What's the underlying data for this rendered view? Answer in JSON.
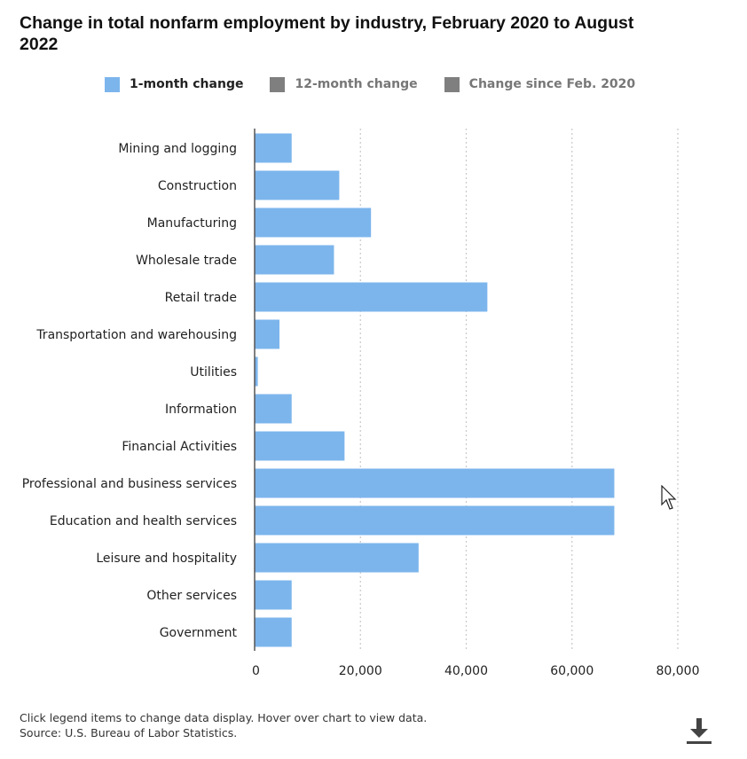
{
  "title": "Change in total nonfarm employment by industry, February 2020 to August 2022",
  "legend": [
    {
      "label": "1-month change",
      "color": "#7cb5ec",
      "active": true
    },
    {
      "label": "12-month change",
      "color": "#7f7f7f",
      "active": false
    },
    {
      "label": "Change since Feb. 2020",
      "color": "#7f7f7f",
      "active": false
    }
  ],
  "chart_data": {
    "type": "bar",
    "orientation": "horizontal",
    "title": "Change in total nonfarm employment by industry, February 2020 to August 2022",
    "categories": [
      "Mining and logging",
      "Construction",
      "Manufacturing",
      "Wholesale trade",
      "Retail trade",
      "Transportation and warehousing",
      "Utilities",
      "Information",
      "Financial Activities",
      "Professional and business services",
      "Education and health services",
      "Leisure and hospitality",
      "Other services",
      "Government"
    ],
    "series": [
      {
        "name": "1-month change",
        "color": "#7cb5ec",
        "values": [
          7000,
          16000,
          22000,
          15000,
          44000,
          4700,
          600,
          7000,
          17000,
          68000,
          68000,
          31000,
          7000,
          7000
        ]
      }
    ],
    "xlim": [
      0,
      80000
    ],
    "xticks": [
      0,
      20000,
      40000,
      60000,
      80000
    ],
    "xtick_labels": [
      "0",
      "20,000",
      "40,000",
      "60,000",
      "80,000"
    ],
    "grid": "vertical-dotted",
    "legend_position": "top"
  },
  "footer": {
    "note": "Click legend items to change data display. Hover over chart to view data.",
    "source": "Source: U.S. Bureau of Labor Statistics."
  },
  "icons": {
    "download": "download-icon",
    "cursor": "mouse-pointer-icon"
  }
}
